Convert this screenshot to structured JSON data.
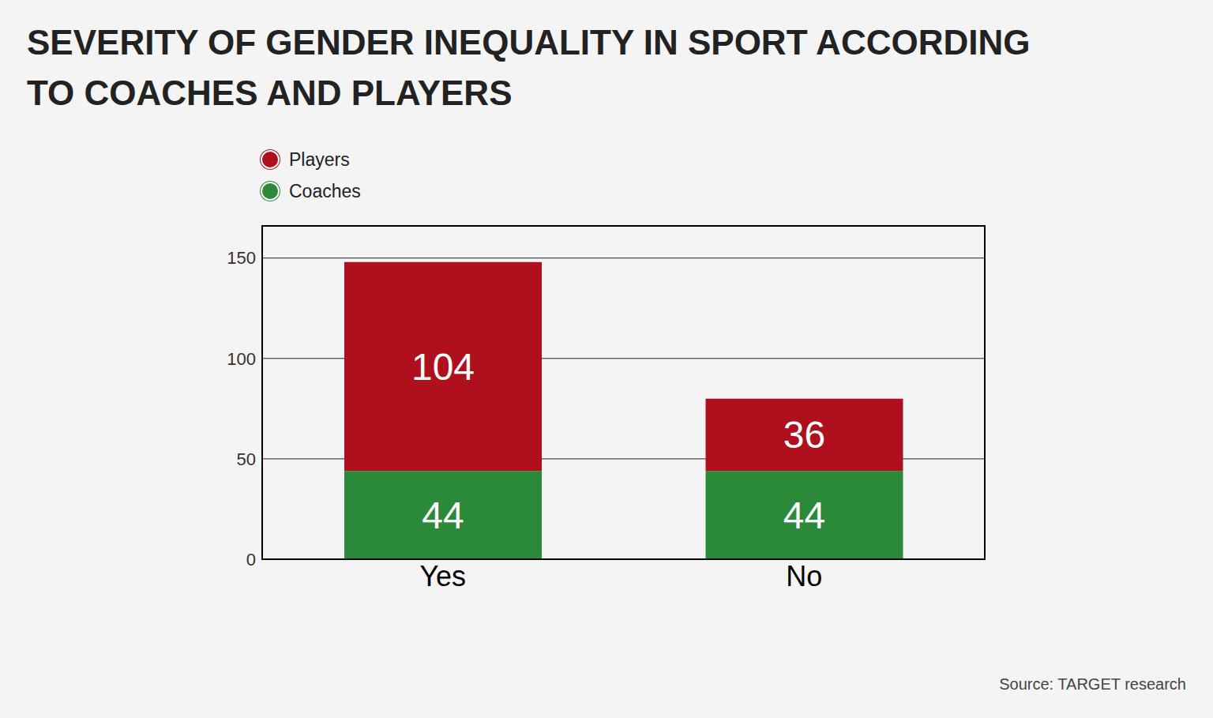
{
  "chart_data": {
    "type": "bar",
    "title": "SEVERITY OF GENDER INEQUALITY IN SPORT ACCORDING TO COACHES AND PLAYERS",
    "source": "Source: TARGET research",
    "categories": [
      "Yes",
      "No"
    ],
    "series": [
      {
        "name": "Players",
        "color": "#b0101e",
        "values": [
          104,
          36
        ]
      },
      {
        "name": "Coaches",
        "color": "#2a8a3a",
        "values": [
          44,
          44
        ]
      }
    ],
    "stacked": true,
    "data_labels": true,
    "ylim": [
      0,
      166
    ],
    "yticks": [
      0,
      50,
      100,
      150
    ],
    "grid": true,
    "legend": "top-left"
  }
}
